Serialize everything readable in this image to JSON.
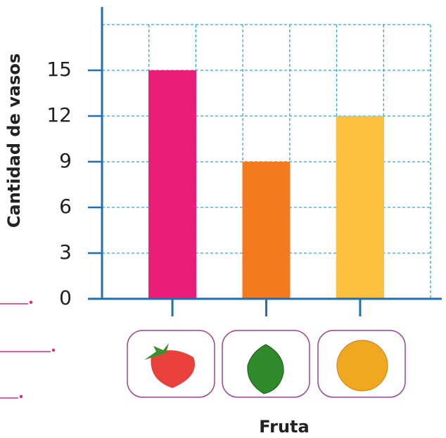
{
  "chart_data": {
    "type": "bar",
    "y_label": "Cantidad de vasos",
    "x_label": "Fruta",
    "categories": [
      null,
      null,
      null
    ],
    "values": [
      15,
      9,
      12
    ],
    "colors": [
      "#ea1e78",
      "#f47a20",
      "#fcbf3e"
    ],
    "ylim": [
      0,
      18
    ],
    "yticks": [
      0,
      3,
      6,
      9,
      12,
      15
    ],
    "grid": true
  }
}
